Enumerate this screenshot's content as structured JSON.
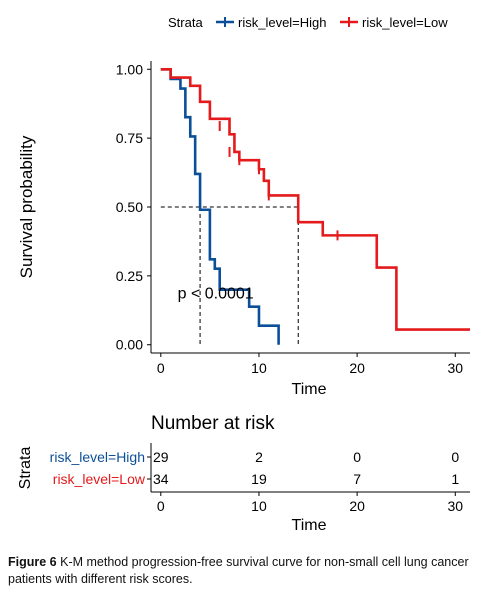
{
  "chart_data": {
    "type": "line",
    "subtype": "kaplan-meier step curve",
    "legend": {
      "title": "Strata",
      "position": "top-center",
      "entries": [
        "risk_level=High",
        "risk_level=Low"
      ]
    },
    "colors": {
      "risk_level=High": "#0b4f99",
      "risk_level=Low": "#e41a1c"
    },
    "xlabel": "Time",
    "ylabel": "Survival probability",
    "xlim": [
      -1,
      31.5
    ],
    "ylim": [
      -0.03,
      1.03
    ],
    "xticks": [
      "0",
      "10",
      "20",
      "30"
    ],
    "xtick_values": [
      0,
      10,
      20,
      30
    ],
    "yticks": [
      "0.00",
      "0.25",
      "0.50",
      "0.75",
      "1.00"
    ],
    "ytick_values": [
      0,
      0.25,
      0.5,
      0.75,
      1.0
    ],
    "grid": false,
    "annotation": "p < 0.0001",
    "annotation_at": {
      "x": 1,
      "y": 0.19
    },
    "median_line": {
      "y": 0.5,
      "medians": [
        4,
        14
      ]
    },
    "series": [
      {
        "name": "risk_level=High",
        "color": "#0b4f99",
        "steps": [
          [
            0,
            1.0
          ],
          [
            1,
            0.965
          ],
          [
            2,
            0.93
          ],
          [
            2.5,
            0.826
          ],
          [
            3,
            0.756
          ],
          [
            3.5,
            0.62
          ],
          [
            4,
            0.49
          ],
          [
            5,
            0.31
          ],
          [
            5.5,
            0.276
          ],
          [
            6,
            0.2
          ],
          [
            8,
            0.2
          ],
          [
            9,
            0.138
          ],
          [
            10,
            0.069
          ],
          [
            12,
            0.0
          ]
        ],
        "end_x": 12,
        "censored": []
      },
      {
        "name": "risk_level=Low",
        "color": "#e41a1c",
        "steps": [
          [
            0,
            1.0
          ],
          [
            1,
            0.97
          ],
          [
            3,
            0.94
          ],
          [
            4,
            0.882
          ],
          [
            5,
            0.82
          ],
          [
            7,
            0.764
          ],
          [
            7.5,
            0.7
          ],
          [
            8,
            0.67
          ],
          [
            10,
            0.637
          ],
          [
            10.5,
            0.595
          ],
          [
            11,
            0.542
          ],
          [
            14,
            0.445
          ],
          [
            16.5,
            0.397
          ],
          [
            22,
            0.28
          ],
          [
            24,
            0.055
          ]
        ],
        "end_x": 31.5,
        "censored": [
          [
            6,
            0.794
          ],
          [
            7,
            0.7
          ],
          [
            8,
            0.67
          ],
          [
            10,
            0.637
          ],
          [
            11,
            0.542
          ],
          [
            18,
            0.397
          ]
        ]
      }
    ],
    "risk_table": {
      "title": "Number at risk",
      "ylabel": "Strata",
      "xlabel": "Time",
      "times": [
        0,
        10,
        20,
        30
      ],
      "time_labels": [
        "0",
        "10",
        "20",
        "30"
      ],
      "rows": [
        {
          "label": "risk_level=High",
          "color": "#0b4f99",
          "values": [
            "29",
            "2",
            "0",
            "0"
          ]
        },
        {
          "label": "risk_level=Low",
          "color": "#e41a1c",
          "values": [
            "34",
            "19",
            "7",
            "1"
          ]
        }
      ]
    }
  },
  "caption": {
    "label": "Figure 6",
    "text": "K-M method progression-free survival curve for non-small cell lung cancer patients with different risk scores."
  }
}
